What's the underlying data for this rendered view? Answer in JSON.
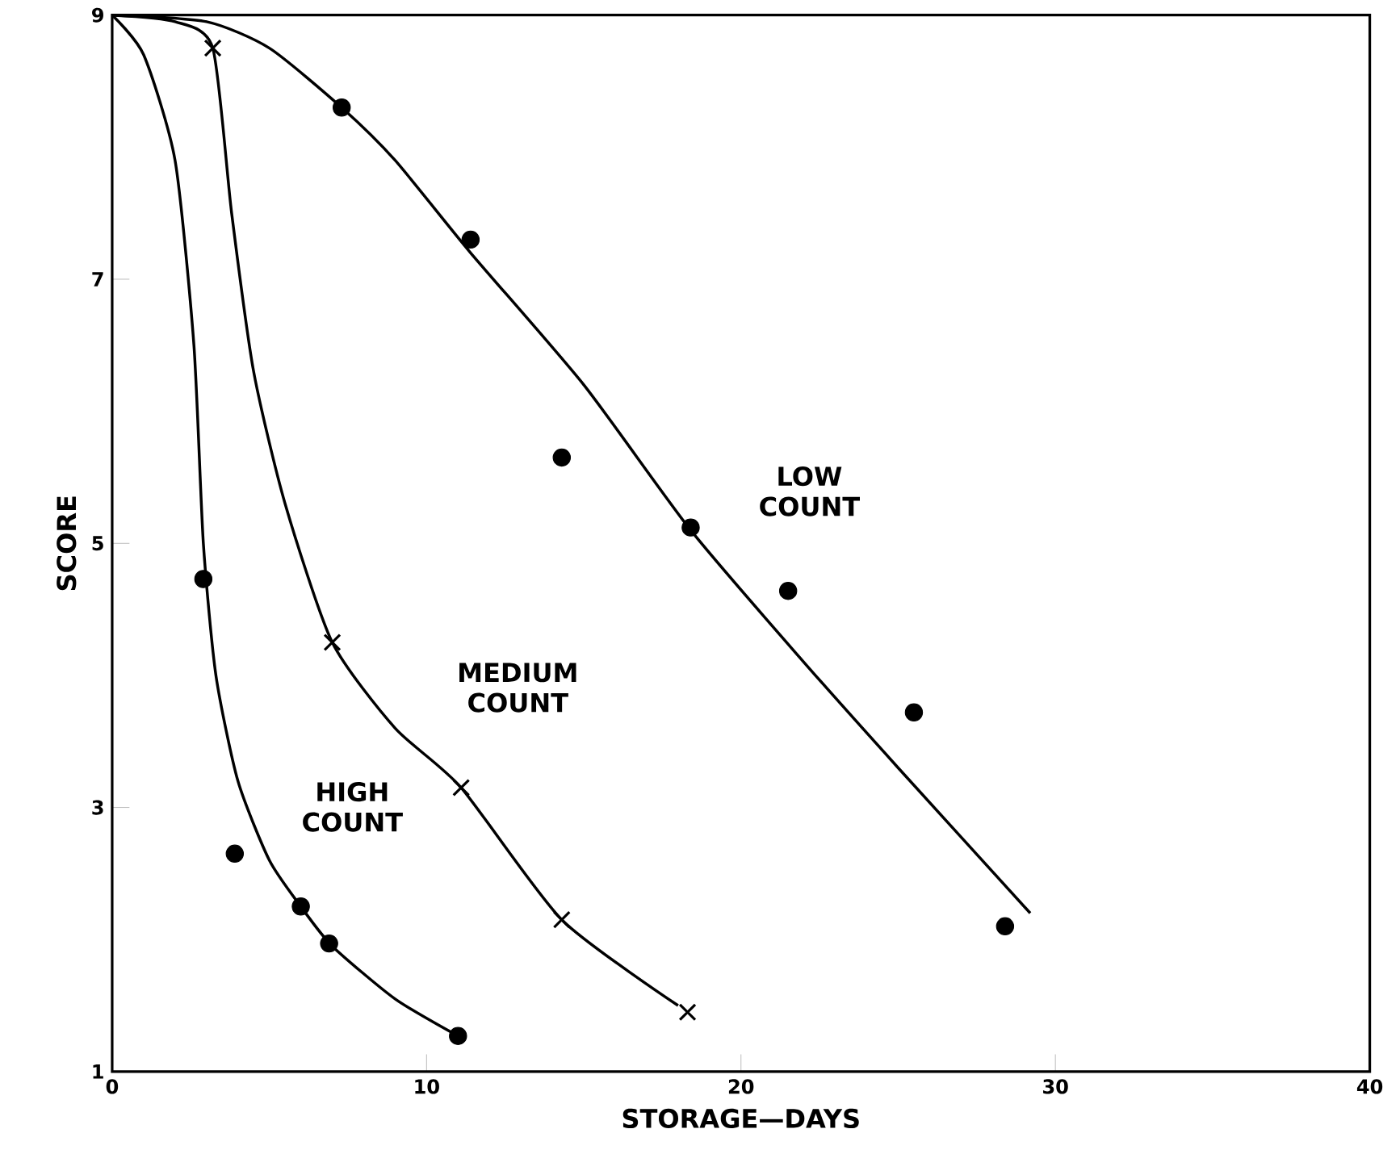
{
  "chart_data": {
    "type": "line",
    "xlabel": "STORAGE—DAYS",
    "ylabel": "SCORE",
    "xlim": [
      0,
      40
    ],
    "ylim": [
      1,
      9
    ],
    "xticks": [
      0,
      10,
      20,
      30,
      40
    ],
    "yticks": [
      1,
      3,
      5,
      7,
      9
    ],
    "grid": false,
    "line_style": "solid",
    "series": [
      {
        "type": "scatter",
        "marker": "circle",
        "color": "#000000",
        "x": [
          7.3,
          11.4,
          14.3,
          18.4,
          21.5,
          25.5,
          28.4
        ],
        "values": [
          8.3,
          7.3,
          5.65,
          5.12,
          4.64,
          3.72,
          2.1
        ]
      },
      {
        "name": "LOW COUNT",
        "marker": "none",
        "color": "#000000",
        "x": [
          0,
          3,
          5,
          7.3,
          9,
          11.4,
          15,
          18.4,
          22,
          25,
          29.2
        ],
        "values": [
          9,
          8.95,
          8.75,
          8.3,
          7.9,
          7.2,
          6.2,
          5.1,
          4.1,
          3.3,
          2.2
        ]
      },
      {
        "type": "scatter",
        "marker": "cross",
        "color": "#000000",
        "x": [
          3.2,
          7.0,
          11.1,
          14.3,
          18.3
        ],
        "values": [
          8.75,
          4.25,
          3.15,
          2.15,
          1.45
        ]
      },
      {
        "name": "MEDIUM COUNT",
        "marker": "none",
        "color": "#000000",
        "x": [
          0,
          2,
          3.2,
          3.8,
          4.5,
          5.5,
          7,
          9,
          11.1,
          14.3,
          18
        ],
        "values": [
          9,
          8.95,
          8.75,
          7.5,
          6.3,
          5.3,
          4.25,
          3.6,
          3.15,
          2.15,
          1.5
        ]
      },
      {
        "type": "scatter",
        "marker": "circle",
        "color": "#000000",
        "x": [
          2.9,
          3.9,
          6.0,
          6.9,
          11.0
        ],
        "values": [
          4.73,
          2.65,
          2.25,
          1.97,
          1.27
        ]
      },
      {
        "name": "HIGH COUNT",
        "marker": "none",
        "color": "#000000",
        "x": [
          0,
          1,
          2,
          2.6,
          2.9,
          3.3,
          4,
          5,
          6,
          7,
          9,
          11
        ],
        "values": [
          9,
          8.7,
          7.9,
          6.5,
          5.0,
          4.0,
          3.2,
          2.6,
          2.25,
          1.95,
          1.55,
          1.27
        ]
      }
    ]
  }
}
